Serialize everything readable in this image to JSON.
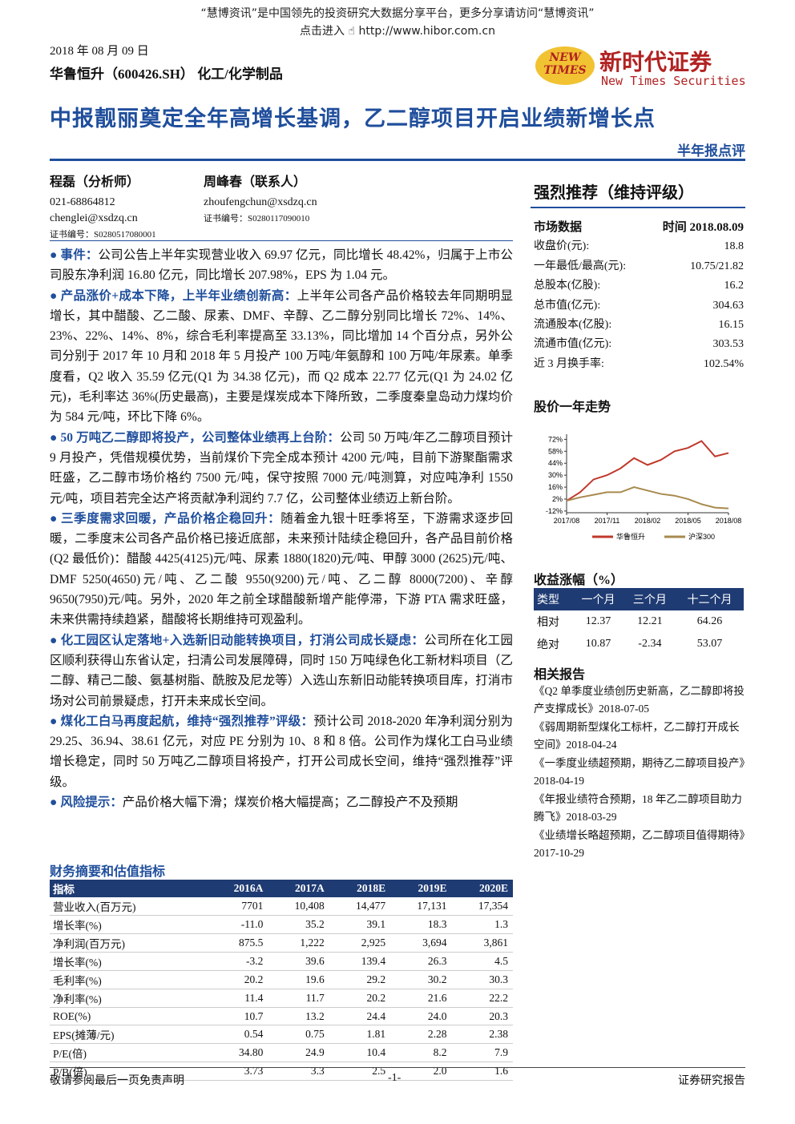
{
  "banner": {
    "line1": "“慧博资讯”是中国领先的投资研究大数据分享平台，更多分享请访问“慧博资讯”",
    "link_label": "点击进入",
    "link_url": "http://www.hibor.com.cn"
  },
  "header": {
    "date": "2018 年 08 月 09 日",
    "company": "华鲁恒升（600426.SH）",
    "industry": "化工/化学制品",
    "logo_mark": "NEW TIMES",
    "logo_cn": "新时代证券",
    "logo_en": "New Times Securities",
    "title": "中报靓丽奠定全年高增长基调，乙二醇项目开启业绩新增长点",
    "report_type": "半年报点评"
  },
  "analysts": [
    {
      "name": "程磊（分析师）",
      "phone": "021-68864812",
      "email": "chenglei@xsdzq.cn",
      "cert": "证书编号：S0280517080001"
    },
    {
      "name": "周峰春（联系人）",
      "email": "zhoufengchun@xsdzq.cn",
      "cert": "证书编号：S0280117090010"
    }
  ],
  "body": [
    {
      "heading": "事件：",
      "text": "公司公告上半年实现营业收入 69.97 亿元，同比增长 48.42%，归属于上市公司股东净利润 16.80 亿元，同比增长 207.98%，EPS 为 1.04 元。"
    },
    {
      "heading": "产品涨价+成本下降，上半年业绩创新高：",
      "text": "上半年公司各产品价格较去年同期明显增长，其中醋酸、乙二酸、尿素、DMF、辛醇、乙二醇分别同比增长 72%、14%、23%、22%、14%、8%，综合毛利率提高至 33.13%，同比增加 14 个百分点，另外公司分别于 2017 年 10 月和 2018 年 5 月投产 100 万吨/年氨醇和 100 万吨/年尿素。单季度看，Q2 收入 35.59 亿元(Q1 为 34.38 亿元)，而 Q2 成本 22.77 亿元(Q1 为 24.02 亿元)，毛利率达 36%(历史最高)，主要是煤炭成本下降所致，二季度秦皇岛动力煤均价为 584 元/吨，环比下降 6%。"
    },
    {
      "heading": "50 万吨乙二醇即将投产，公司整体业绩再上台阶：",
      "text": "公司 50 万吨/年乙二醇项目预计 9 月投产，凭借规模优势，当前煤价下完全成本预计 4200 元/吨，目前下游聚酯需求旺盛，乙二醇市场价格约 7500 元/吨，保守按照 7000 元/吨测算，对应吨净利 1550 元/吨，项目若完全达产将贡献净利润约 7.7 亿，公司整体业绩迈上新台阶。"
    },
    {
      "heading": "三季度需求回暖，产品价格企稳回升：",
      "text": "随着金九银十旺季将至，下游需求逐步回暖，二季度末公司各产品价格已接近底部，未来预计陆续企稳回升，各产品目前价格(Q2 最低价)：醋酸 4425(4125)元/吨、尿素 1880(1820)元/吨、甲醇 3000 (2625)元/吨、DMF 5250(4650)元/吨、乙二酸 9550(9200)元/吨、乙二醇 8000(7200)、辛醇 9650(7950)元/吨。另外，2020 年之前全球醋酸新增产能停滞，下游 PTA 需求旺盛，未来供需持续趋紧，醋酸将长期维持可观盈利。"
    },
    {
      "heading": "化工园区认定落地+入选新旧动能转换项目，打消公司成长疑虑：",
      "text": "公司所在化工园区顺利获得山东省认定，扫清公司发展障碍，同时 150 万吨绿色化工新材料项目（乙二醇、精己二酸、氨基树脂、酰胺及尼龙等）入选山东新旧动能转换项目库，打消市场对公司前景疑虑，打开未来成长空间。"
    },
    {
      "heading": "煤化工白马再度起航，维持“强烈推荐”评级：",
      "text": "预计公司 2018-2020 年净利润分别为 29.25、36.94、38.61 亿元，对应 PE 分别为 10、8 和 8 倍。公司作为煤化工白马业绩增长稳定，同时 50 万吨乙二醇项目将投产，打开公司成长空间，维持“强烈推荐”评级。"
    },
    {
      "heading": "风险提示：",
      "text": "产品价格大幅下滑；煤炭价格大幅提高；乙二醇投产不及预期"
    }
  ],
  "rating": "强烈推荐（维持评级）",
  "market_data": {
    "header": [
      "市场数据",
      "时间 2018.08.09"
    ],
    "rows": [
      [
        "收盘价(元):",
        "18.8"
      ],
      [
        "一年最低/最高(元):",
        "10.75/21.82"
      ],
      [
        "总股本(亿股):",
        "16.2"
      ],
      [
        "总市值(亿元):",
        "304.63"
      ],
      [
        "流通股本(亿股):",
        "16.15"
      ],
      [
        "流通市值(亿元):",
        "303.53"
      ],
      [
        "近 3 月换手率:",
        "102.54%"
      ]
    ]
  },
  "price_chart": {
    "title": "股价一年走势",
    "type": "line",
    "categories": [
      "2017/08",
      null,
      null,
      "2017/11",
      null,
      null,
      "2018/02",
      null,
      null,
      "2018/05",
      null,
      null,
      "2018/08"
    ],
    "series": [
      {
        "name": "华鲁恒升",
        "color": "#c0392b",
        "values": [
          0,
          10,
          25,
          30,
          38,
          50,
          42,
          48,
          58,
          62,
          70,
          52,
          56
        ]
      },
      {
        "name": "沪深300",
        "color": "#a88a4e",
        "values": [
          0,
          4,
          7,
          10,
          10,
          16,
          12,
          8,
          6,
          2,
          -4,
          -8,
          -9
        ]
      }
    ],
    "ylim": [
      -14,
      78
    ],
    "yticks": [
      {
        "value": -12,
        "label": "-12%"
      },
      {
        "value": 2,
        "label": "2%"
      },
      {
        "value": 16,
        "label": "16%"
      },
      {
        "value": 30,
        "label": "30%"
      },
      {
        "value": 44,
        "label": "44%"
      },
      {
        "value": 58,
        "label": "58%"
      },
      {
        "value": 72,
        "label": "72%"
      }
    ]
  },
  "returns": {
    "title": "收益涨幅（%）",
    "header": [
      "类型",
      "一个月",
      "三个月",
      "十二个月"
    ],
    "rows": [
      [
        "相对",
        "12.37",
        "12.21",
        "64.26"
      ],
      [
        "绝对",
        "10.87",
        "-2.34",
        "53.07"
      ]
    ]
  },
  "related": {
    "title": "相关报告",
    "items": [
      "《Q2 单季度业绩创历史新高，乙二醇即将投产支撑成长》2018-07-05",
      "《弱周期新型煤化工标杆，乙二醇打开成长空间》2018-04-24",
      "《一季度业绩超预期，期待乙二醇项目投产》2018-04-19",
      "《年报业绩符合预期，18 年乙二醇项目助力腾飞》2018-03-29",
      "《业绩增长略超预期，乙二醇项目值得期待》2017-10-29"
    ]
  },
  "financials": {
    "title": "财务摘要和估值指标",
    "header": [
      "指标",
      "2016A",
      "2017A",
      "2018E",
      "2019E",
      "2020E"
    ],
    "rows": [
      [
        "营业收入(百万元)",
        "7701",
        "10,408",
        "14,477",
        "17,131",
        "17,354"
      ],
      [
        "增长率(%)",
        "-11.0",
        "35.2",
        "39.1",
        "18.3",
        "1.3"
      ],
      [
        "净利润(百万元)",
        "875.5",
        "1,222",
        "2,925",
        "3,694",
        "3,861"
      ],
      [
        "增长率(%)",
        "-3.2",
        "39.6",
        "139.4",
        "26.3",
        "4.5"
      ],
      [
        "毛利率(%)",
        "20.2",
        "19.6",
        "29.2",
        "30.2",
        "30.3"
      ],
      [
        "净利率(%)",
        "11.4",
        "11.7",
        "20.2",
        "21.6",
        "22.2"
      ],
      [
        "ROE(%)",
        "10.7",
        "13.2",
        "24.4",
        "24.0",
        "20.3"
      ],
      [
        "EPS(摊薄/元)",
        "0.54",
        "0.75",
        "1.81",
        "2.28",
        "2.38"
      ],
      [
        "P/E(倍)",
        "34.80",
        "24.9",
        "10.4",
        "8.2",
        "7.9"
      ],
      [
        "P/B(倍)",
        "3.73",
        "3.3",
        "2.5",
        "2.0",
        "1.6"
      ]
    ]
  },
  "footer": {
    "left": "敬请参阅最后一页免责声明",
    "center": "-1-",
    "right": "证券研究报告"
  }
}
